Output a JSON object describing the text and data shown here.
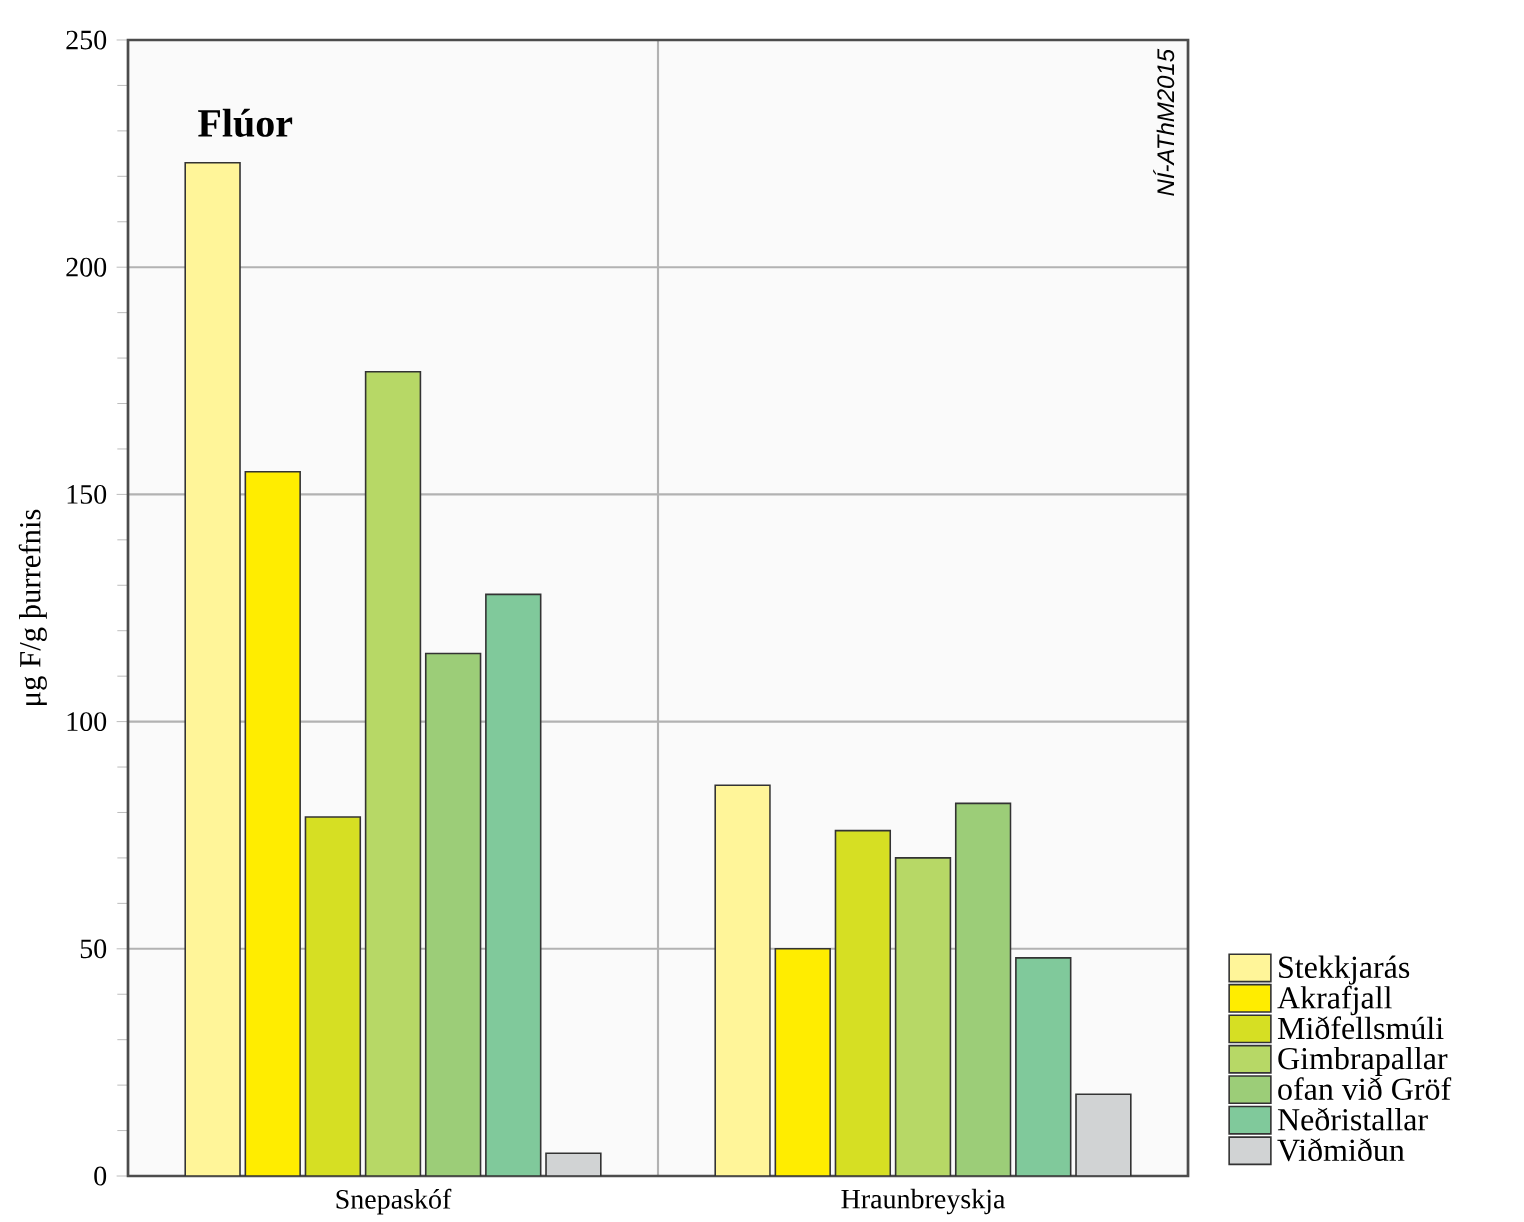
{
  "chart_data": {
    "type": "bar",
    "title": "**Flúor**",
    "ylabel": "μg F/g  þurrefnis",
    "categories": [
      "Snepaskóf",
      "Hraunbreyskja"
    ],
    "series": [
      {
        "name": "Stekkjarás",
        "color": "#fff599",
        "values": [
          223,
          86
        ]
      },
      {
        "name": "Akrafjall",
        "color": "#ffed00",
        "values": [
          155,
          50
        ]
      },
      {
        "name": "Miðfellsmúli",
        "color": "#d6df23",
        "values": [
          79,
          76
        ]
      },
      {
        "name": "Gimbrapallar",
        "color": "#b7d866",
        "values": [
          177,
          70
        ]
      },
      {
        "name": "ofan við Gröf",
        "color": "#9ccd78",
        "values": [
          115,
          82
        ]
      },
      {
        "name": "Neðristallar",
        "color": "#80c99b",
        "values": [
          128,
          48
        ]
      },
      {
        "name": "Viðmiðun",
        "color": "#d1d3d4",
        "values": [
          5,
          18
        ]
      }
    ],
    "ylim": [
      0,
      250
    ],
    "yticks": [
      0,
      50,
      100,
      150,
      200,
      250
    ],
    "grid": true,
    "legend": "bottom right",
    "annotations": [
      "NÍ-AThM2015"
    ]
  }
}
